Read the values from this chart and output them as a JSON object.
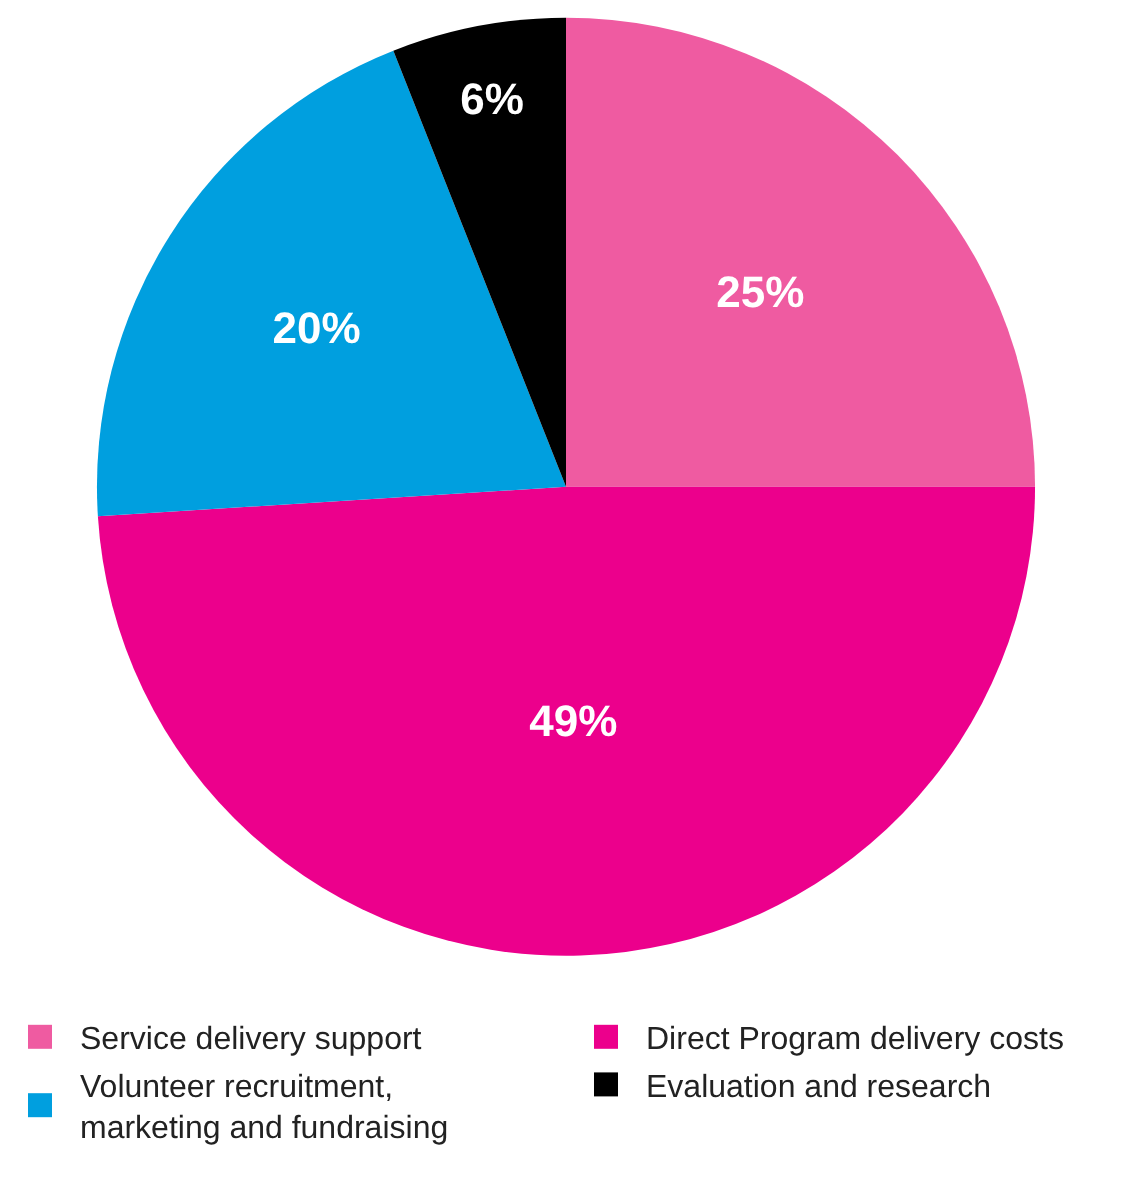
{
  "chart_data": {
    "type": "pie",
    "categories": [
      "Service delivery support",
      "Direct Program delivery costs",
      "Volunteer recruitment,\nmarketing and fundraising",
      "Evaluation and research"
    ],
    "values": [
      25,
      49,
      20,
      6
    ],
    "value_labels": [
      "25%",
      "49%",
      "20%",
      "6%"
    ],
    "colors": [
      "#ef5ba1",
      "#ec008c",
      "#009fdf",
      "#000000"
    ],
    "legend": "bottom"
  }
}
